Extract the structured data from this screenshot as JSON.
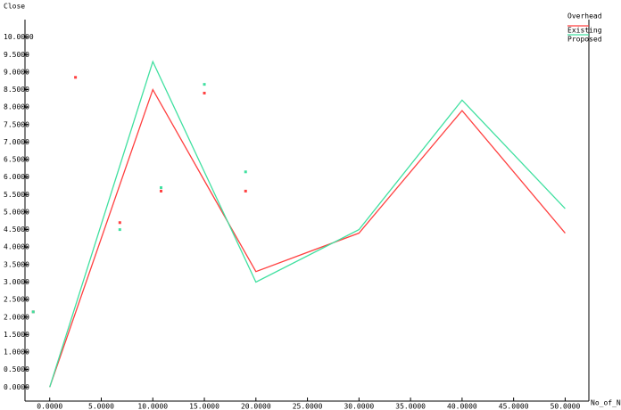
{
  "chart_data": {
    "type": "line",
    "button": "Close",
    "ylabel": "Overhead",
    "xlabel": "No_of_Node",
    "xlim": [
      -2.4,
      52.3
    ],
    "ylim": [
      -0.4,
      10.5
    ],
    "xticks": [
      {
        "value": 0,
        "label": "0.0000"
      },
      {
        "value": 5,
        "label": "5.0000"
      },
      {
        "value": 10,
        "label": "10.0000"
      },
      {
        "value": 15,
        "label": "15.0000"
      },
      {
        "value": 20,
        "label": "20.0000"
      },
      {
        "value": 25,
        "label": "25.0000"
      },
      {
        "value": 30,
        "label": "30.0000"
      },
      {
        "value": 35,
        "label": "35.0000"
      },
      {
        "value": 40,
        "label": "40.0000"
      },
      {
        "value": 45,
        "label": "45.0000"
      },
      {
        "value": 50,
        "label": "50.0000"
      }
    ],
    "yticks": [
      {
        "value": 0,
        "label": "0.0000"
      },
      {
        "value": 0.5,
        "label": "0.5000"
      },
      {
        "value": 1,
        "label": "1.0000"
      },
      {
        "value": 1.5,
        "label": "1.5000"
      },
      {
        "value": 2,
        "label": "2.0000"
      },
      {
        "value": 2.5,
        "label": "2.5000"
      },
      {
        "value": 3,
        "label": "3.0000"
      },
      {
        "value": 3.5,
        "label": "3.5000"
      },
      {
        "value": 4,
        "label": "4.0000"
      },
      {
        "value": 4.5,
        "label": "4.5000"
      },
      {
        "value": 5,
        "label": "5.0000"
      },
      {
        "value": 5.5,
        "label": "5.5000"
      },
      {
        "value": 6,
        "label": "6.0000"
      },
      {
        "value": 6.5,
        "label": "6.5000"
      },
      {
        "value": 7,
        "label": "7.0000"
      },
      {
        "value": 7.5,
        "label": "7.5000"
      },
      {
        "value": 8,
        "label": "8.0000"
      },
      {
        "value": 8.5,
        "label": "8.5000"
      },
      {
        "value": 9,
        "label": "9.0000"
      },
      {
        "value": 9.5,
        "label": "9.5000"
      },
      {
        "value": 10,
        "label": "10.0000"
      }
    ],
    "series": [
      {
        "name": "Existing",
        "color": "#ff4040",
        "x": [
          0,
          10,
          20,
          30,
          40,
          50
        ],
        "values": [
          0,
          8.5,
          3.3,
          4.4,
          7.9,
          4.4
        ],
        "marker_x": [
          -1.6,
          2.5,
          6.8,
          10.8,
          15,
          19
        ],
        "marker_values": [
          2.15,
          8.85,
          4.7,
          5.6,
          8.4,
          5.6
        ]
      },
      {
        "name": "Proposed",
        "color": "#40e0a0",
        "x": [
          0,
          10,
          20,
          30,
          40,
          50
        ],
        "values": [
          0,
          9.3,
          3.0,
          4.5,
          8.2,
          5.1
        ],
        "marker_x": [
          -1.6,
          6.8,
          10.8,
          15,
          19
        ],
        "marker_values": [
          2.15,
          4.5,
          5.7,
          8.65,
          6.15
        ]
      }
    ]
  }
}
